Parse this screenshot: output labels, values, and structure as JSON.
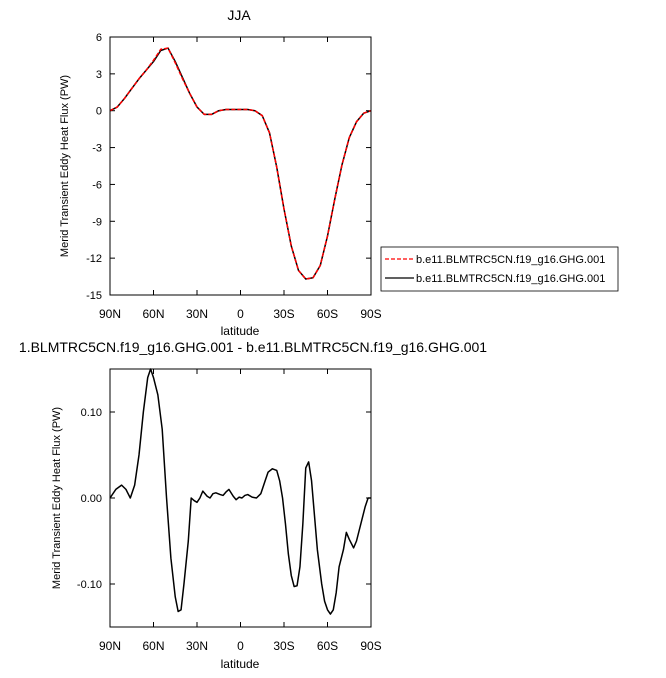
{
  "chart_data": [
    {
      "type": "line",
      "title": "JJA",
      "xlabel": "latitude",
      "ylabel": "Merid Transient Eddy Heat Flux (PW)",
      "xlim": [
        90,
        -90
      ],
      "ylim": [
        -15,
        6
      ],
      "xticks": [
        90,
        60,
        30,
        0,
        -30,
        -60,
        -90
      ],
      "xtick_labels": [
        "90N",
        "60N",
        "30N",
        "0",
        "30S",
        "60S",
        "90S"
      ],
      "yticks": [
        6,
        3,
        0,
        -3,
        -6,
        -9,
        -12,
        -15
      ],
      "ytick_labels": [
        "6",
        "3",
        "0",
        "-3",
        "-6",
        "-9",
        "-12",
        "-15"
      ],
      "legend": "outside-right",
      "series": [
        {
          "name": "b.e11.BLMTRC5CN.f19_g16.GHG.001",
          "color": "#ff0000",
          "dash": "dashed",
          "x": [
            90,
            85,
            80,
            75,
            70,
            65,
            60,
            55,
            50,
            45,
            40,
            35,
            30,
            25,
            20,
            15,
            10,
            5,
            0,
            -5,
            -10,
            -15,
            -20,
            -25,
            -30,
            -35,
            -40,
            -45,
            -50,
            -55,
            -60,
            -65,
            -70,
            -75,
            -80,
            -85,
            -90
          ],
          "y": [
            0.0,
            0.3,
            1.0,
            1.8,
            2.6,
            3.3,
            4.1,
            5.0,
            5.1,
            3.9,
            2.6,
            1.4,
            0.3,
            -0.3,
            -0.3,
            0.0,
            0.1,
            0.1,
            0.1,
            0.1,
            0.0,
            -0.4,
            -1.8,
            -4.6,
            -8.0,
            -11.0,
            -13.0,
            -13.7,
            -13.6,
            -12.6,
            -10.2,
            -7.2,
            -4.4,
            -2.2,
            -0.9,
            -0.2,
            0.0
          ]
        },
        {
          "name": "b.e11.BLMTRC5CN.f19_g16.GHG.001",
          "color": "#000000",
          "dash": "solid",
          "x": [
            90,
            85,
            80,
            75,
            70,
            65,
            60,
            55,
            50,
            45,
            40,
            35,
            30,
            25,
            20,
            15,
            10,
            5,
            0,
            -5,
            -10,
            -15,
            -20,
            -25,
            -30,
            -35,
            -40,
            -45,
            -50,
            -55,
            -60,
            -65,
            -70,
            -75,
            -80,
            -85,
            -90
          ],
          "y": [
            0.0,
            0.3,
            1.0,
            1.8,
            2.6,
            3.3,
            4.0,
            4.9,
            5.1,
            4.0,
            2.7,
            1.4,
            0.3,
            -0.3,
            -0.3,
            0.0,
            0.1,
            0.1,
            0.1,
            0.1,
            0.0,
            -0.4,
            -1.8,
            -4.6,
            -8.0,
            -11.0,
            -13.0,
            -13.7,
            -13.6,
            -12.6,
            -10.2,
            -7.2,
            -4.4,
            -2.2,
            -0.9,
            -0.2,
            0.0
          ]
        }
      ]
    },
    {
      "type": "line",
      "title": "1.BLMTRC5CN.f19_g16.GHG.001 - b.e11.BLMTRC5CN.f19_g16.GHG.001",
      "xlabel": "latitude",
      "ylabel": "Merid Transient Eddy Heat Flux (PW)",
      "xlim": [
        90,
        -90
      ],
      "ylim": [
        -0.15,
        0.15
      ],
      "xticks": [
        90,
        60,
        30,
        0,
        -30,
        -60,
        -90
      ],
      "xtick_labels": [
        "90N",
        "60N",
        "30N",
        "0",
        "30S",
        "60S",
        "90S"
      ],
      "yticks": [
        0.1,
        0.0,
        -0.1
      ],
      "ytick_labels": [
        "0.10",
        "0.00",
        "-0.10"
      ],
      "series": [
        {
          "color": "#000000",
          "dash": "solid",
          "x": [
            90,
            86,
            82,
            79,
            76,
            73,
            70,
            67,
            64,
            62,
            60,
            57,
            54,
            51,
            48,
            45,
            43,
            41,
            39,
            36,
            34,
            32,
            30,
            28,
            26,
            23,
            21,
            19,
            17,
            14,
            12,
            10,
            8,
            5,
            3,
            1,
            -1,
            -3,
            -5,
            -8,
            -11,
            -14,
            -17,
            -19,
            -22,
            -25,
            -27,
            -29,
            -31,
            -33,
            -35,
            -37,
            -39,
            -41,
            -43,
            -45,
            -47,
            -49,
            -51,
            -53,
            -56,
            -58,
            -60,
            -62,
            -64,
            -66,
            -68,
            -71,
            -73,
            -75,
            -78,
            -80,
            -83,
            -86,
            -88,
            -90
          ],
          "y": [
            0.0,
            0.01,
            0.015,
            0.01,
            0.0,
            0.015,
            0.05,
            0.1,
            0.14,
            0.15,
            0.14,
            0.12,
            0.08,
            0.0,
            -0.07,
            -0.115,
            -0.132,
            -0.13,
            -0.1,
            -0.05,
            0.0,
            -0.003,
            -0.005,
            0.0,
            0.008,
            0.002,
            0.0,
            0.005,
            0.006,
            0.004,
            0.003,
            0.007,
            0.01,
            0.002,
            -0.002,
            0.001,
            0.0,
            0.003,
            0.004,
            0.001,
            0.0,
            0.005,
            0.02,
            0.03,
            0.034,
            0.032,
            0.02,
            0.0,
            -0.03,
            -0.065,
            -0.09,
            -0.103,
            -0.102,
            -0.08,
            -0.03,
            0.035,
            0.042,
            0.02,
            -0.02,
            -0.06,
            -0.1,
            -0.12,
            -0.13,
            -0.135,
            -0.13,
            -0.11,
            -0.08,
            -0.06,
            -0.04,
            -0.048,
            -0.058,
            -0.05,
            -0.03,
            -0.01,
            0.0,
            0.0
          ]
        }
      ]
    }
  ]
}
